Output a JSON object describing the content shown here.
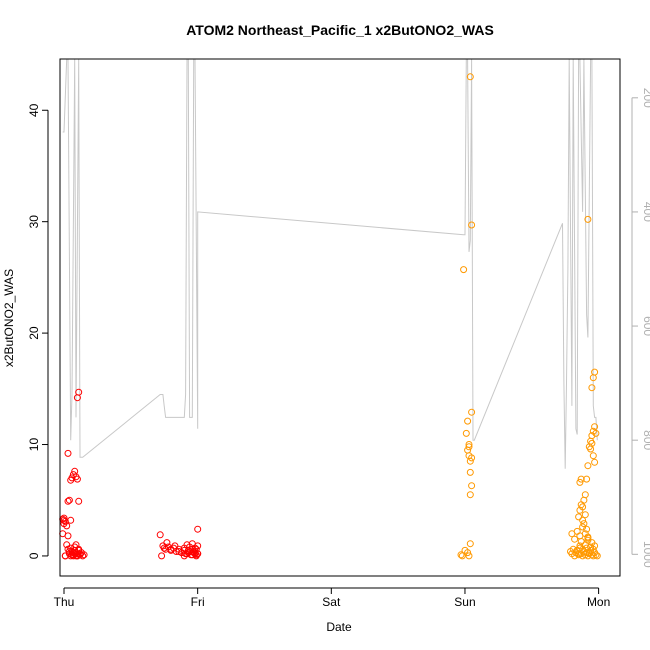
{
  "chart_data": {
    "type": "scatter",
    "title": "ATOM2 Northeast_Pacific_1 x2ButONO2_WAS",
    "xlabel": "Date",
    "ylabel": "x2ButONO2_WAS",
    "x_ticks": [
      "Thu",
      "Fri",
      "Sat",
      "Sun",
      "Mon"
    ],
    "xlim": [
      -0.03,
      4.16
    ],
    "ylim": [
      -1.8,
      44.6
    ],
    "y_ticks": [
      0,
      10,
      20,
      30,
      40
    ],
    "y2_ticks": [
      200,
      400,
      600,
      800,
      1000
    ],
    "y2lim": [
      1038,
      132
    ],
    "colors": {
      "early": "#ff0000",
      "late": "#ff9900",
      "altitude": "#c8c8c8",
      "axis": "#000000",
      "secondary_axis": "#b0b0b0"
    },
    "series": [
      {
        "color": "#ff0000",
        "x": [
          -0.01,
          0.0,
          0.01,
          0.02,
          0.03,
          0.04,
          0.05,
          0.06,
          0.07,
          0.08,
          0.09,
          0.1,
          0.11,
          0.12,
          0.13,
          0.14,
          0.15,
          0.01,
          0.02,
          0.03,
          0.04,
          0.05,
          0.06,
          0.07,
          0.08,
          0.09,
          0.1,
          0.11,
          0.12,
          -0.01,
          0.0,
          0.0,
          0.01,
          0.03,
          0.05,
          0.06,
          0.07,
          0.08,
          0.09,
          0.1,
          0.11,
          0.1,
          0.11,
          0.03,
          0.04,
          0.05,
          0.06,
          0.07,
          0.08,
          0.09,
          0.1,
          0.72,
          0.74,
          0.76,
          0.78,
          0.8,
          0.82,
          0.84,
          0.86,
          0.88,
          0.9,
          0.92,
          0.94,
          0.96,
          0.98,
          1.0,
          0.75,
          0.77,
          0.8,
          0.83,
          0.86,
          0.9,
          0.93,
          0.96,
          0.99,
          0.9,
          0.91,
          0.93,
          0.95,
          0.97,
          0.99,
          1.0,
          0.92,
          0.94,
          0.96,
          0.98,
          1.0,
          0.97,
          0.98,
          0.99,
          1.0,
          0.73
        ],
        "y": [
          3.3,
          2.9,
          3.1,
          2.7,
          1.8,
          0.4,
          0.7,
          0.1,
          0.3,
          0.5,
          0.0,
          0.2,
          0.6,
          0.1,
          0.3,
          0.0,
          0.1,
          0.0,
          1.0,
          0.6,
          0.2,
          0.0,
          0.4,
          0.1,
          0.8,
          0.3,
          0.0,
          0.5,
          0.2,
          2.0,
          3.4,
          3.2,
          0.0,
          9.2,
          6.8,
          7.0,
          7.3,
          7.6,
          7.1,
          6.9,
          4.9,
          14.2,
          14.7,
          4.9,
          5.0,
          3.2,
          0.1,
          0.0,
          0.2,
          1.0,
          0.0,
          1.9,
          0.9,
          0.6,
          0.8,
          0.5,
          0.7,
          0.4,
          0.6,
          0.3,
          0.5,
          0.2,
          0.4,
          0.1,
          0.3,
          0.2,
          0.7,
          1.2,
          0.6,
          0.9,
          0.4,
          0.7,
          0.3,
          0.6,
          0.1,
          0.0,
          0.2,
          0.5,
          0.1,
          0.3,
          0.0,
          0.2,
          1.0,
          0.8,
          1.1,
          0.7,
          0.9,
          0.4,
          0.2,
          0.6,
          2.4,
          0.0
        ]
      },
      {
        "color": "#ff9900",
        "x": [
          2.97,
          2.98,
          3.0,
          3.02,
          3.03,
          3.04,
          2.99,
          3.01,
          3.02,
          3.03,
          3.04,
          3.05,
          3.02,
          3.03,
          3.04,
          3.05,
          3.04,
          3.05,
          3.05,
          3.04,
          3.03,
          3.79,
          3.8,
          3.81,
          3.82,
          3.83,
          3.84,
          3.85,
          3.86,
          3.87,
          3.88,
          3.89,
          3.9,
          3.91,
          3.92,
          3.93,
          3.94,
          3.95,
          3.96,
          3.97,
          3.98,
          3.99,
          3.8,
          3.82,
          3.84,
          3.86,
          3.88,
          3.9,
          3.92,
          3.85,
          3.86,
          3.87,
          3.88,
          3.89,
          3.9,
          3.91,
          3.92,
          3.93,
          3.94,
          3.95,
          3.96,
          3.97,
          3.98,
          3.9,
          3.91,
          3.92,
          3.93,
          3.94,
          3.95,
          3.96,
          3.97,
          3.94,
          3.95,
          3.96,
          3.97,
          3.86,
          3.87,
          3.88,
          3.89,
          3.9,
          3.91,
          3.92,
          3.84,
          3.85,
          3.86,
          3.87,
          3.88,
          3.95,
          3.96,
          3.97,
          3.92
        ],
        "y": [
          0.1,
          0.0,
          0.5,
          0.3,
          0.0,
          1.1,
          25.7,
          11.0,
          9.5,
          9.0,
          8.5,
          8.8,
          12.1,
          10.0,
          7.5,
          6.3,
          5.5,
          12.9,
          29.7,
          43.0,
          9.8,
          0.4,
          0.2,
          0.6,
          0.0,
          0.3,
          0.5,
          0.1,
          0.7,
          0.2,
          0.0,
          0.4,
          0.1,
          0.3,
          0.0,
          0.2,
          0.5,
          0.1,
          0.0,
          0.3,
          0.1,
          0.0,
          2.0,
          1.5,
          2.2,
          1.8,
          2.6,
          2.0,
          1.6,
          3.5,
          4.1,
          4.6,
          3.2,
          5.0,
          5.5,
          6.9,
          8.1,
          9.8,
          10.3,
          10.8,
          11.2,
          11.6,
          11.0,
          1.0,
          0.7,
          1.4,
          0.3,
          0.8,
          1.2,
          0.6,
          0.9,
          9.6,
          10.1,
          9.0,
          8.4,
          6.6,
          6.9,
          4.4,
          2.9,
          3.7,
          2.4,
          1.7,
          0.5,
          0.2,
          0.9,
          1.3,
          0.6,
          15.1,
          16.0,
          16.5,
          30.2
        ]
      }
    ],
    "altitude_trace": {
      "x": [
        -0.01,
        0.0,
        0.02,
        0.03,
        0.05,
        0.06,
        0.08,
        0.09,
        0.11,
        0.12,
        0.14,
        0.72,
        0.74,
        0.75,
        0.76,
        0.8,
        0.82,
        0.9,
        0.91,
        0.92,
        0.93,
        0.94,
        0.96,
        0.97,
        0.98,
        1.0,
        1.0,
        2.99,
        3.0,
        3.01,
        3.02,
        3.03,
        3.04,
        3.05,
        3.06,
        3.07,
        3.73,
        3.74,
        3.75,
        3.76,
        3.77,
        3.78,
        3.8,
        3.81,
        3.83,
        3.84,
        3.85,
        3.86,
        3.88,
        3.89,
        3.91,
        3.92,
        3.94,
        3.95,
        3.96,
        3.97,
        3.98,
        3.99
      ],
      "y": [
        260,
        260,
        120,
        120,
        800,
        720,
        120,
        760,
        120,
        830,
        830,
        720,
        720,
        740,
        760,
        760,
        760,
        760,
        720,
        120,
        120,
        760,
        760,
        120,
        120,
        780,
        400,
        440,
        440,
        120,
        120,
        470,
        450,
        120,
        800,
        800,
        420,
        700,
        850,
        700,
        500,
        120,
        740,
        120,
        780,
        790,
        120,
        120,
        400,
        120,
        580,
        620,
        120,
        120,
        740,
        760,
        760,
        800
      ]
    }
  }
}
